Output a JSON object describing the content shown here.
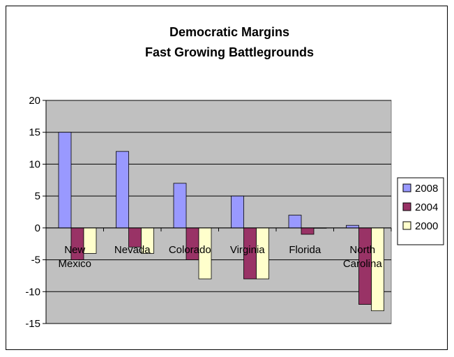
{
  "chart_data": {
    "type": "bar",
    "title": [
      "Democratic Margins",
      "Fast Growing Battlegrounds"
    ],
    "categories": [
      [
        "New",
        "Mexico"
      ],
      [
        "Nevada"
      ],
      [
        "Colorado"
      ],
      [
        "Virginia"
      ],
      [
        "Florida"
      ],
      [
        "North",
        "Carolina"
      ]
    ],
    "series": [
      {
        "name": "2008",
        "color": "#9999ff",
        "values": [
          15,
          12,
          7,
          5,
          2,
          0.4
        ]
      },
      {
        "name": "2004",
        "color": "#993366",
        "values": [
          -5,
          -3,
          -5,
          -8,
          -1,
          -12
        ]
      },
      {
        "name": "2000",
        "color": "#ffffcc",
        "values": [
          -4,
          -4,
          -8,
          -8,
          0,
          -13
        ]
      }
    ],
    "ylim": [
      -15,
      20
    ],
    "yticks": [
      20,
      15,
      10,
      5,
      0,
      -5,
      -10,
      -15
    ],
    "ytick_labels": [
      "20",
      "15",
      "10",
      "5",
      "0",
      "-5",
      "-10",
      "-15"
    ],
    "plot_background": "#c0c0c0",
    "grid": true,
    "legend_position": "right"
  }
}
